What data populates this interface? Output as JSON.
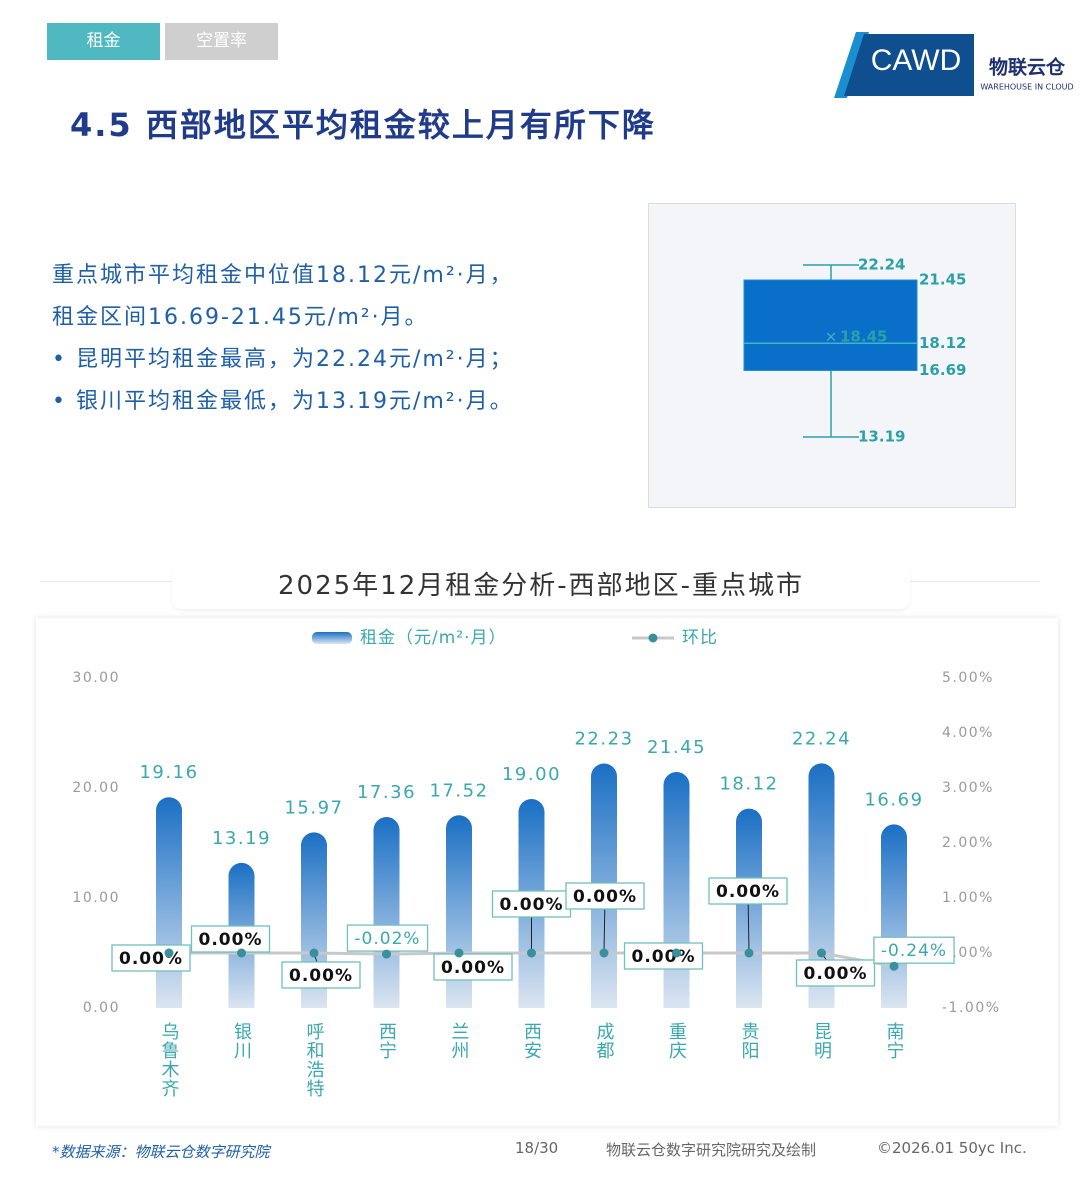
{
  "tabs": [
    "租金",
    "空置率"
  ],
  "logo": {
    "left": "CAWD",
    "right": "物联云仓",
    "right_sub": "WAREHOUSE IN CLOUD"
  },
  "title": "4.5 西部地区平均租金较上月有所下降",
  "text": {
    "lines": [
      "重点城市平均租金中位值18.12元/m²·月，",
      "租金区间16.69-21.45元/m²·月。"
    ],
    "bullets": [
      "昆明平均租金最高，为22.24元/m²·月；",
      "银川平均租金最低，为13.19元/m²·月。"
    ]
  },
  "section_title": "2025年12月租金分析-西部地区-重点城市",
  "chart_data": [
    {
      "type": "box",
      "min": 13.19,
      "q1": 16.69,
      "median": 18.12,
      "q3": 21.45,
      "max": 22.24,
      "mean": 18.45,
      "color": "#0a6fc9"
    },
    {
      "type": "bar",
      "categories": [
        "乌鲁木齐",
        "银川",
        "呼和浩特",
        "西宁",
        "兰州",
        "西安",
        "成都",
        "重庆",
        "贵阳",
        "昆明",
        "南宁"
      ],
      "series": [
        {
          "name": "租金（元/m²·月）",
          "color": "#1a6fc4",
          "values": [
            19.16,
            13.19,
            15.97,
            17.36,
            17.52,
            19.0,
            22.23,
            21.45,
            18.12,
            22.24,
            16.69
          ],
          "value_labels": [
            "19.16",
            "13.19",
            "15.97",
            "17.36",
            "17.52",
            "19.00",
            "22.23",
            "21.45",
            "18.12",
            "22.24",
            "16.69"
          ]
        },
        {
          "name": "环比",
          "type": "line",
          "axis": "y2",
          "color": "#c8c8c8",
          "marker_color": "#3a8f9c",
          "values": [
            0,
            0,
            0,
            -0.02,
            0,
            0,
            0,
            0,
            0,
            0,
            -0.24
          ],
          "value_labels": [
            "0.00%",
            "0.00%",
            "0.00%",
            "-0.02%",
            "0.00%",
            "0.00%",
            "0.00%",
            "0.00%",
            "0.00%",
            "0.00%",
            "-0.24%"
          ]
        }
      ],
      "ylim": [
        0,
        30
      ],
      "yticks": [
        {
          "value": 0,
          "label": "0.00"
        },
        {
          "value": 10,
          "label": "10.00"
        },
        {
          "value": 20,
          "label": "20.00"
        },
        {
          "value": 30,
          "label": "30.00"
        }
      ],
      "y2lim": [
        -1,
        5
      ],
      "y2ticks": [
        {
          "value": -1,
          "label": "-1.00%"
        },
        {
          "value": 0,
          "label": "0.00%"
        },
        {
          "value": 1,
          "label": "1.00%"
        },
        {
          "value": 2,
          "label": "2.00%"
        },
        {
          "value": 3,
          "label": "3.00%"
        },
        {
          "value": 4,
          "label": "4.00%"
        },
        {
          "value": 5,
          "label": "5.00%"
        }
      ],
      "grid": false
    }
  ],
  "footer": {
    "source": "*数据来源：物联云仓数字研究院",
    "page": "18/30",
    "credit": "物联云仓数字研究院研究及绘制",
    "copyright": "©2026.01 50yc Inc."
  }
}
